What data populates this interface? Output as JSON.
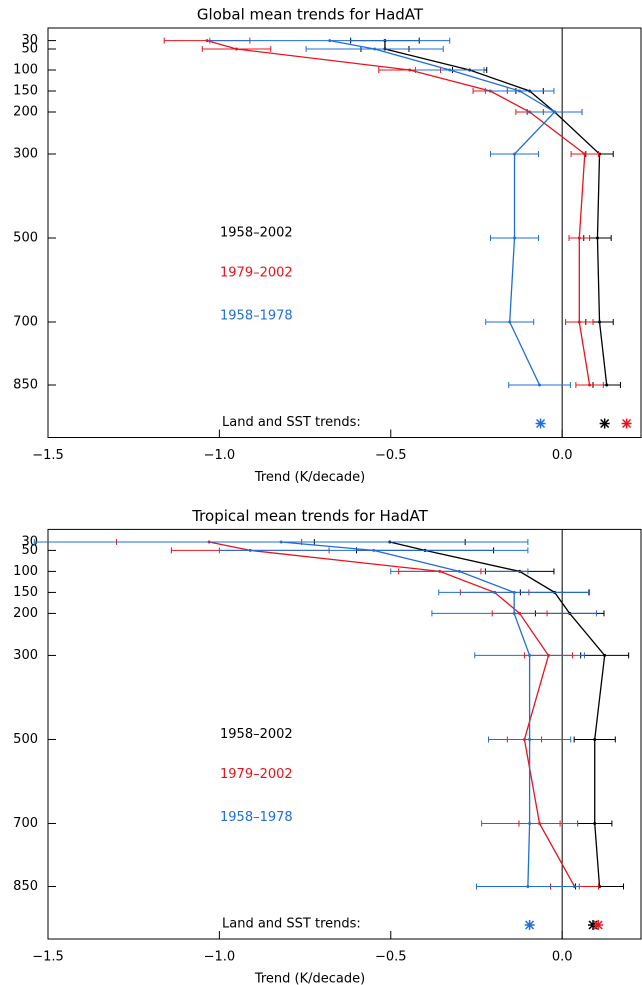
{
  "chart_data": [
    {
      "type": "profile",
      "title": "Global mean trends for HadAT",
      "x_label": "Trend (K/decade)",
      "xlim": [
        -1.5,
        0.23
      ],
      "xticks": [
        {
          "value": -1.5,
          "label": "−1.5"
        },
        {
          "value": -1.0,
          "label": "−1.0"
        },
        {
          "value": -0.5,
          "label": "−0.5"
        },
        {
          "value": 0,
          "label": "0.0"
        }
      ],
      "ylim": [
        0,
        975
      ],
      "yticks": [
        30,
        50,
        100,
        150,
        200,
        300,
        500,
        700,
        850
      ],
      "surface_label": "Land and SST trends:",
      "series": [
        {
          "name": "1958–2002",
          "color": "#000000",
          "values": [
            -0.517,
            -0.517,
            -0.27,
            -0.095,
            -0.022,
            0.109,
            0.103,
            0.109,
            0.13
          ],
          "errors": [
            0.1,
            0.07,
            0.05,
            0.04,
            0.08,
            0.04,
            0.04,
            0.04,
            0.04
          ],
          "surface": 0.124
        },
        {
          "name": "1979–2002",
          "color": "#e8141c",
          "values": [
            -1.036,
            -0.95,
            -0.445,
            -0.21,
            -0.095,
            0.066,
            0.05,
            0.05,
            0.08
          ],
          "errors": [
            0.125,
            0.1,
            0.09,
            0.05,
            0.04,
            0.04,
            0.03,
            0.04,
            0.04
          ],
          "surface": 0.188
        },
        {
          "name": "1958–1978",
          "color": "#1f6fd8",
          "values": [
            -0.678,
            -0.547,
            -0.328,
            -0.124,
            -0.022,
            -0.139,
            -0.139,
            -0.153,
            -0.066
          ],
          "errors": [
            0.35,
            0.2,
            0.1,
            0.1,
            0.08,
            0.07,
            0.07,
            0.07,
            0.09
          ],
          "surface": -0.063
        }
      ]
    },
    {
      "type": "profile",
      "title": "Tropical mean trends for HadAT",
      "x_label": "Trend (K/decade)",
      "xlim": [
        -1.5,
        0.23
      ],
      "xticks": [
        {
          "value": -1.5,
          "label": "−1.5"
        },
        {
          "value": -1.0,
          "label": "−1.0"
        },
        {
          "value": -0.5,
          "label": "−0.5"
        },
        {
          "value": 0,
          "label": "0.0"
        }
      ],
      "ylim": [
        0,
        975
      ],
      "yticks": [
        30,
        50,
        100,
        150,
        200,
        300,
        500,
        700,
        850
      ],
      "surface_label": "Land and SST trends:",
      "series": [
        {
          "name": "1958–2002",
          "color": "#000000",
          "values": [
            -0.503,
            -0.4,
            -0.124,
            -0.022,
            0.022,
            0.124,
            0.095,
            0.095,
            0.109
          ],
          "errors": [
            0.22,
            0.2,
            0.1,
            0.1,
            0.1,
            0.07,
            0.06,
            0.05,
            0.07
          ],
          "surface": 0.09
        },
        {
          "name": "1979–2002",
          "color": "#e8141c",
          "values": [
            -1.03,
            -0.91,
            -0.357,
            -0.197,
            -0.124,
            -0.04,
            -0.11,
            -0.066,
            0.036
          ],
          "errors": [
            0.27,
            0.23,
            0.12,
            0.1,
            0.08,
            0.07,
            0.05,
            0.06,
            0.07
          ],
          "surface": 0.105
        },
        {
          "name": "1958–1978",
          "color": "#1f6fd8",
          "values": [
            -0.82,
            -0.55,
            -0.3,
            -0.14,
            -0.14,
            -0.095,
            -0.095,
            -0.095,
            -0.1
          ],
          "errors": [
            0.72,
            0.45,
            0.2,
            0.22,
            0.24,
            0.16,
            0.12,
            0.14,
            0.15
          ],
          "surface": -0.095
        }
      ]
    }
  ]
}
